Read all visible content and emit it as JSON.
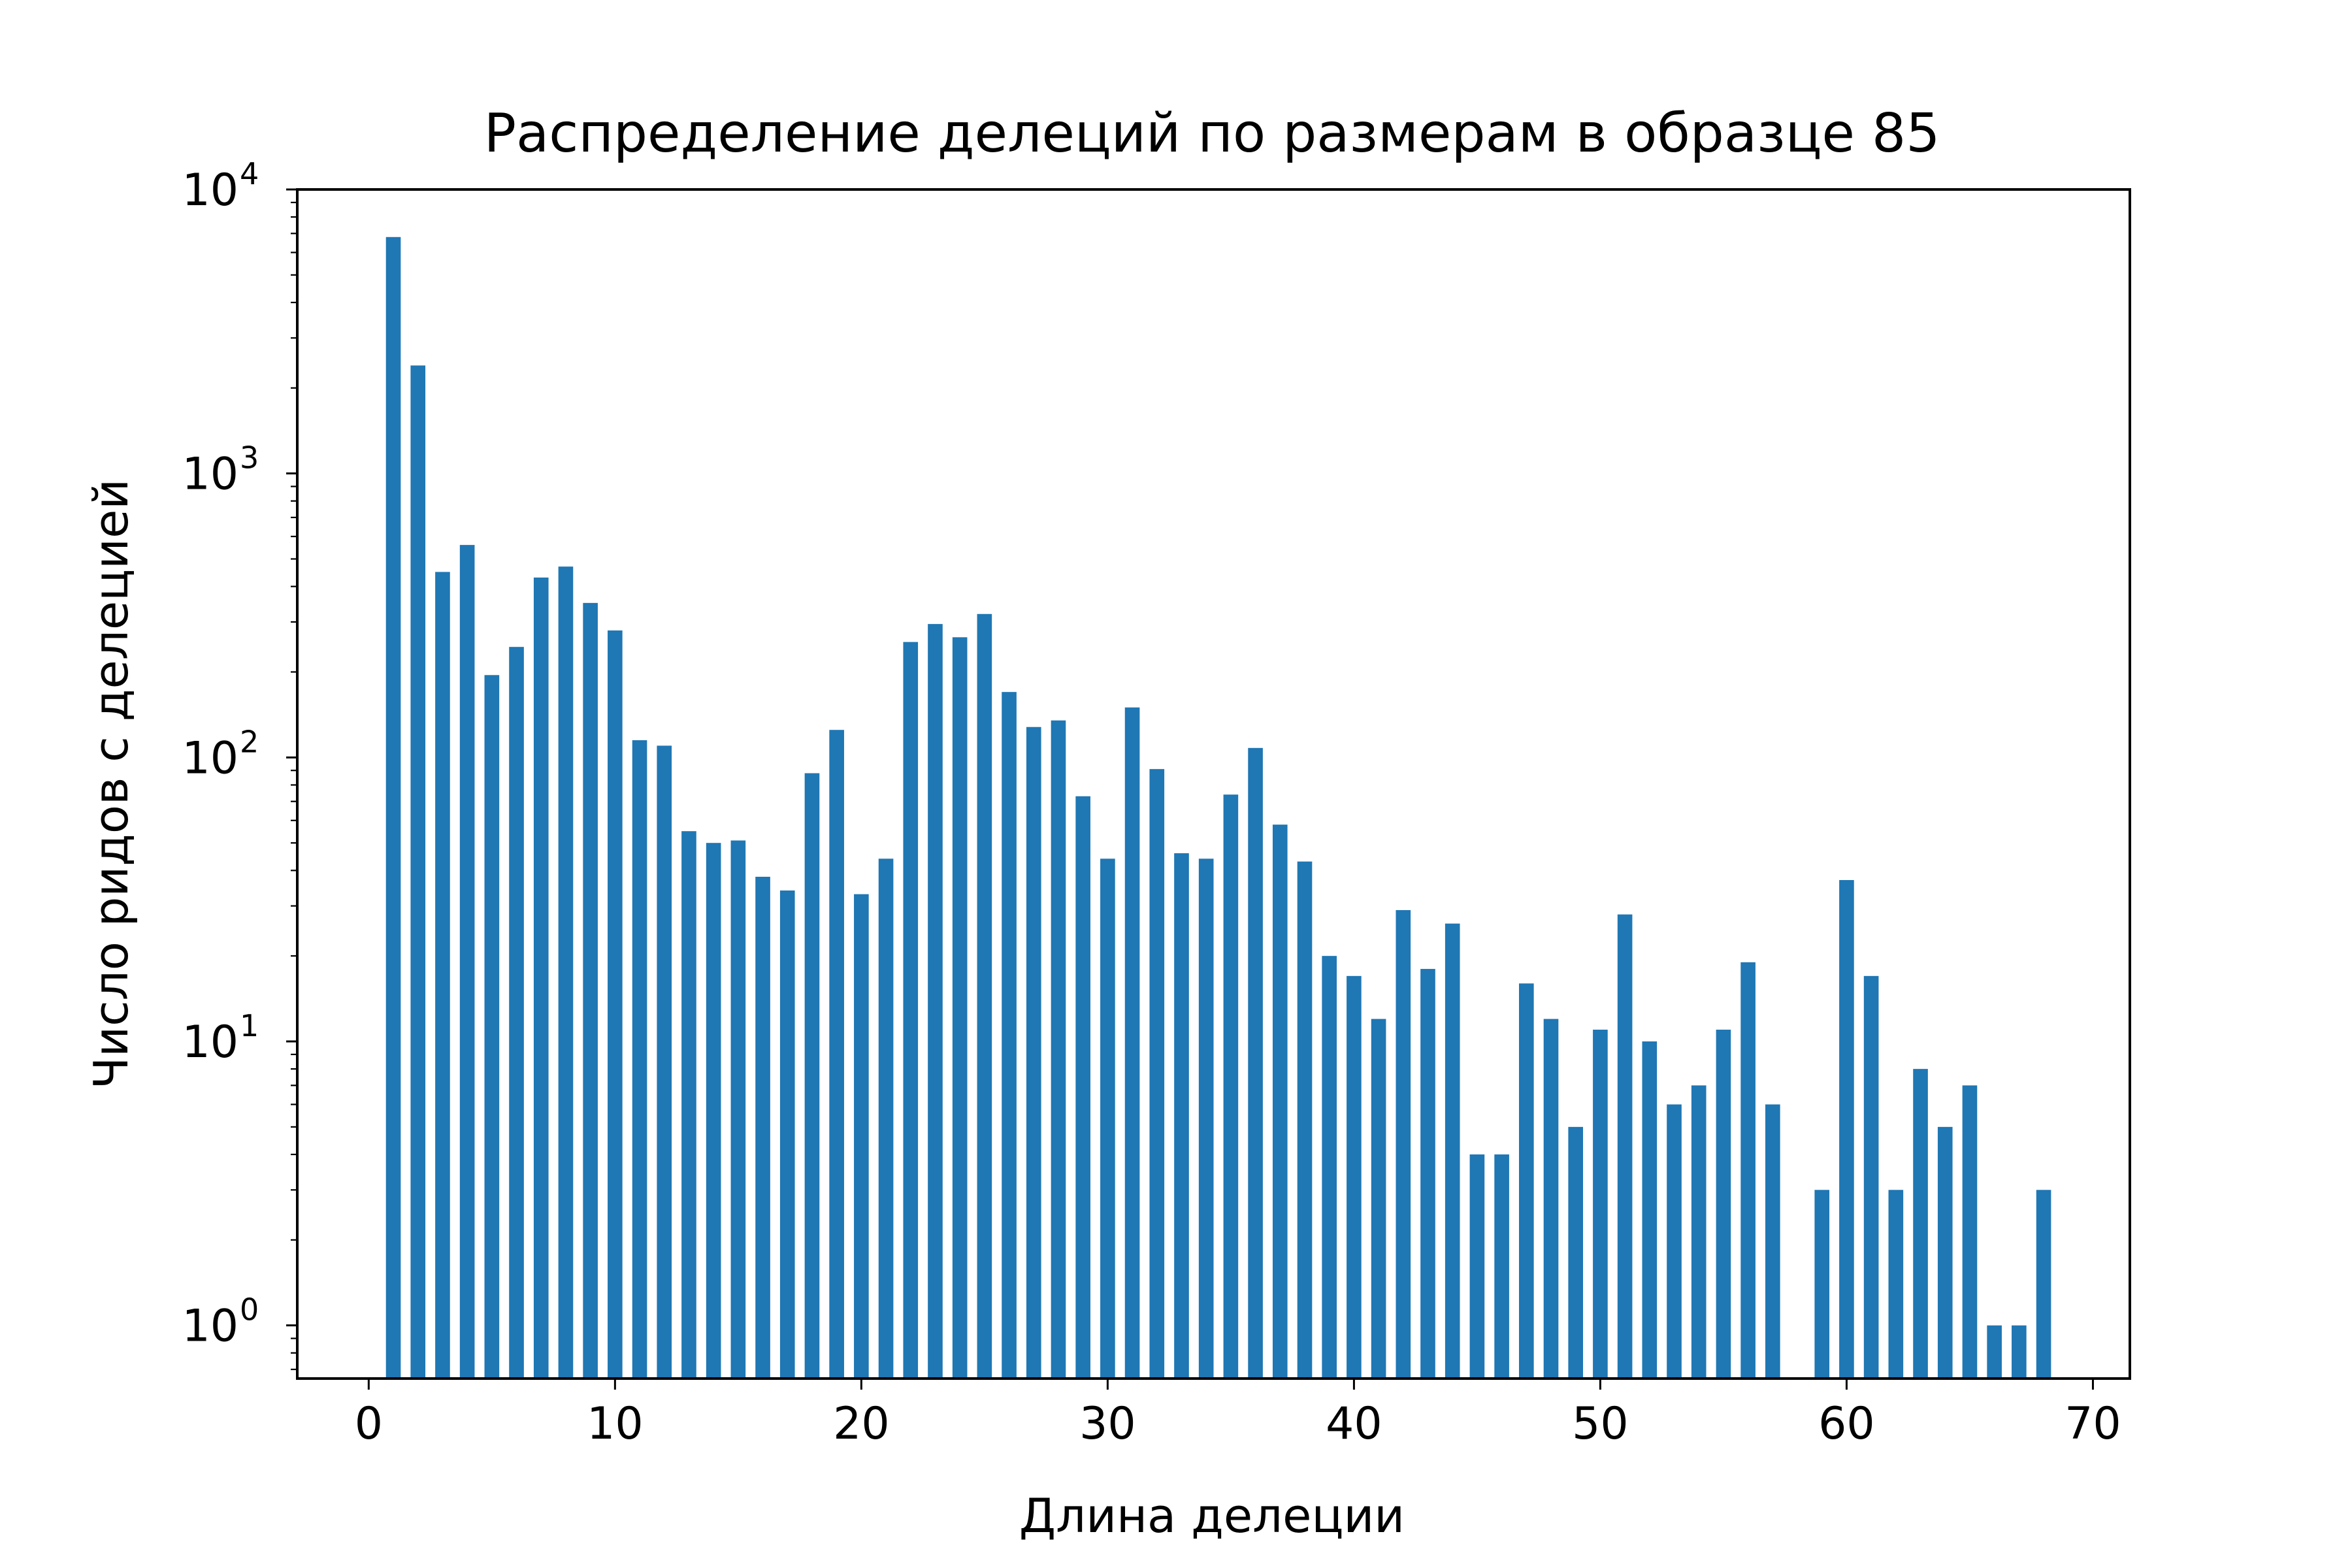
{
  "chart_data": {
    "type": "bar",
    "title": "Распределение делеций по размерам в образце 85",
    "xlabel": "Длина делеции",
    "ylabel": "Число ридов с делецией",
    "yscale": "log",
    "xlim": [
      -2.9,
      71.5
    ],
    "ylim": [
      0.65,
      10000
    ],
    "xticks": [
      0,
      10,
      20,
      30,
      40,
      50,
      60,
      70
    ],
    "xtick_labels": [
      "0",
      "10",
      "20",
      "30",
      "40",
      "50",
      "60",
      "70"
    ],
    "yticks": [
      1,
      10,
      100,
      1000,
      10000
    ],
    "ytick_labels": [
      {
        "base": "10",
        "exp": "0"
      },
      {
        "base": "10",
        "exp": "1"
      },
      {
        "base": "10",
        "exp": "2"
      },
      {
        "base": "10",
        "exp": "3"
      },
      {
        "base": "10",
        "exp": "4"
      }
    ],
    "grid": false,
    "legend": "none",
    "bar_color": "#1f77b4",
    "x": [
      1,
      2,
      3,
      4,
      5,
      6,
      7,
      8,
      9,
      10,
      11,
      12,
      13,
      14,
      15,
      16,
      17,
      18,
      19,
      20,
      21,
      22,
      23,
      24,
      25,
      26,
      27,
      28,
      29,
      30,
      31,
      32,
      33,
      34,
      35,
      36,
      37,
      38,
      39,
      40,
      41,
      42,
      43,
      44,
      45,
      46,
      47,
      48,
      49,
      50,
      51,
      52,
      53,
      54,
      55,
      56,
      57,
      59,
      60,
      61,
      62,
      63,
      64,
      65,
      66,
      67,
      68
    ],
    "values": [
      6800,
      2400,
      450,
      560,
      195,
      245,
      430,
      470,
      350,
      280,
      115,
      110,
      55,
      50,
      51,
      38,
      34,
      88,
      125,
      33,
      44,
      255,
      295,
      265,
      320,
      170,
      128,
      135,
      73,
      44,
      150,
      91,
      46,
      44,
      74,
      108,
      58,
      43,
      20,
      17,
      12,
      29,
      18,
      26,
      4,
      4,
      16,
      12,
      5,
      11,
      28,
      10,
      6,
      7,
      11,
      19,
      6,
      3,
      37,
      17,
      3,
      8,
      5,
      7,
      1,
      1,
      3
    ]
  }
}
